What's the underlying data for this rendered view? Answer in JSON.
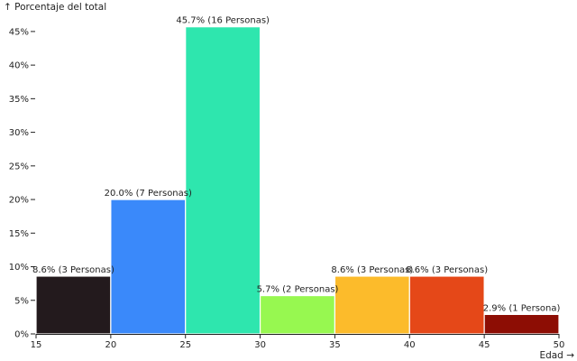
{
  "chart_data": {
    "type": "bar",
    "ylabel": "↑ Porcentaje del total",
    "xlabel": "Edad →",
    "xlim": [
      15,
      50
    ],
    "ylim": [
      0,
      47
    ],
    "x_ticks": [
      15,
      20,
      25,
      30,
      35,
      40,
      45,
      50
    ],
    "y_ticks": [
      {
        "value": 0,
        "label": "0%"
      },
      {
        "value": 5,
        "label": "5%"
      },
      {
        "value": 10,
        "label": "10%"
      },
      {
        "value": 15,
        "label": "15%"
      },
      {
        "value": 20,
        "label": "20%"
      },
      {
        "value": 25,
        "label": "25%"
      },
      {
        "value": 30,
        "label": "30%"
      },
      {
        "value": 35,
        "label": "35%"
      },
      {
        "value": 40,
        "label": "40%"
      },
      {
        "value": 45,
        "label": "45%"
      }
    ],
    "bins": [
      {
        "x0": 15,
        "x1": 20,
        "value": 8.6,
        "label": "8.6% (3 Personas)",
        "color": "#231a1d"
      },
      {
        "x0": 20,
        "x1": 25,
        "value": 20.0,
        "label": "20.0% (7 Personas)",
        "color": "#3a89fa"
      },
      {
        "x0": 25,
        "x1": 30,
        "value": 45.7,
        "label": "45.7% (16 Personas)",
        "color": "#2ee6ae"
      },
      {
        "x0": 30,
        "x1": 35,
        "value": 5.7,
        "label": "5.7% (2 Personas)",
        "color": "#97f850"
      },
      {
        "x0": 35,
        "x1": 40,
        "value": 8.6,
        "label": "8.6% (3 Personas)",
        "color": "#fcbb2b"
      },
      {
        "x0": 40,
        "x1": 45,
        "value": 8.6,
        "label": "8.6% (3 Personas)",
        "color": "#e54818"
      },
      {
        "x0": 45,
        "x1": 50,
        "value": 2.9,
        "label": "2.9% (1 Persona)",
        "color": "#8d0d04"
      }
    ]
  }
}
